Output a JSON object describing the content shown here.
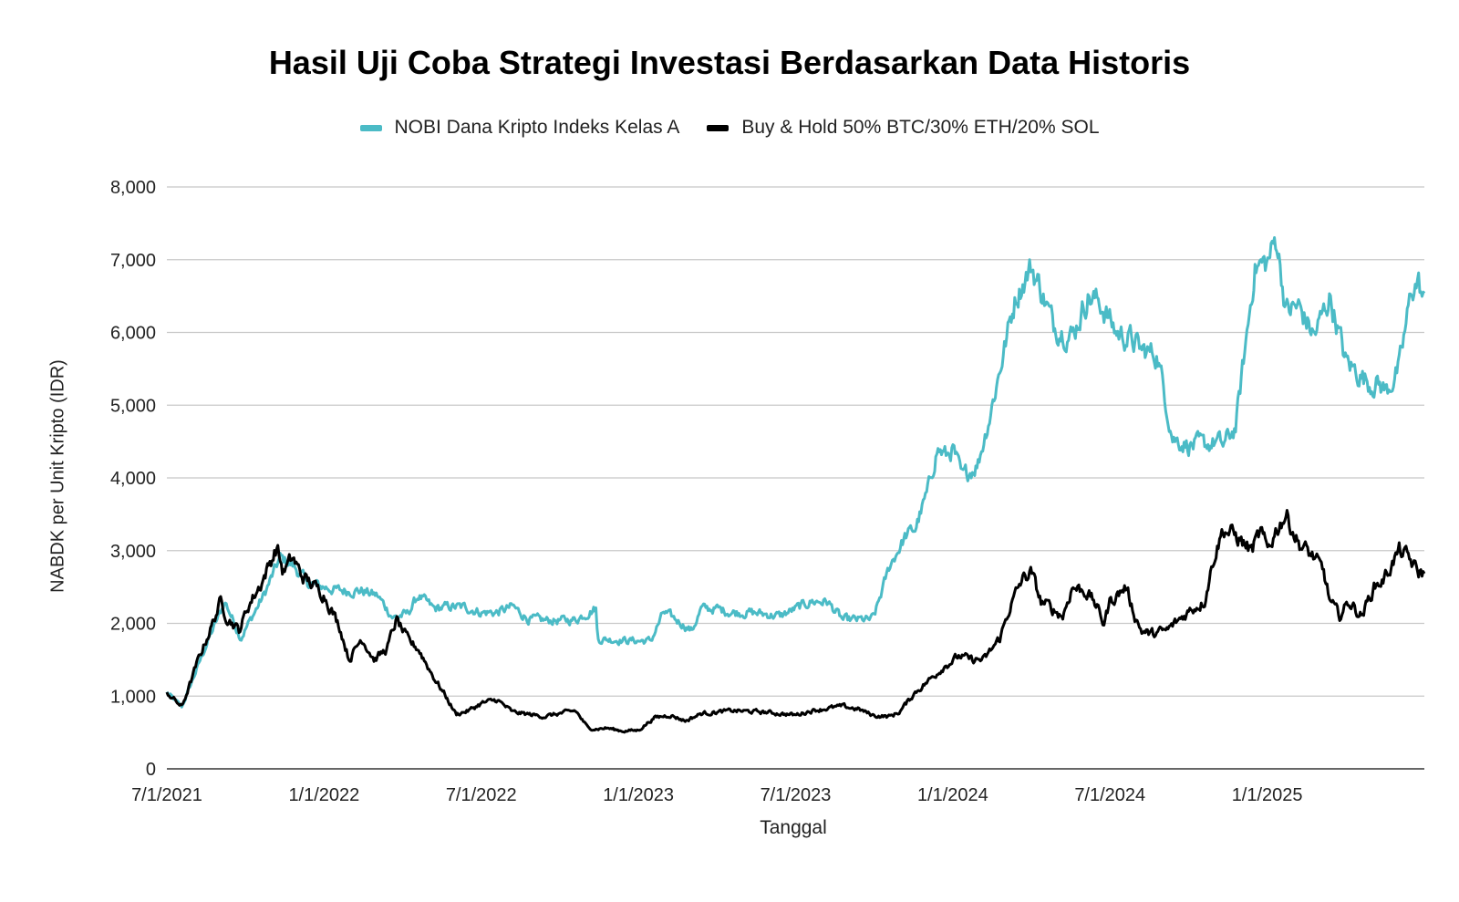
{
  "chart_data": {
    "type": "line",
    "title": "Hasil Uji Coba Strategi Investasi Berdasarkan Data Historis",
    "xlabel": "Tanggal",
    "ylabel": "NABDK per Unit Kripto (IDR)",
    "ylim": [
      0,
      8000
    ],
    "y_ticks": [
      "0",
      "1,000",
      "2,000",
      "3,000",
      "4,000",
      "5,000",
      "6,000",
      "7,000",
      "8,000"
    ],
    "y_tick_values": [
      0,
      1000,
      2000,
      3000,
      4000,
      5000,
      6000,
      7000,
      8000
    ],
    "x_ticks": [
      "7/1/2021",
      "1/1/2022",
      "7/1/2022",
      "1/1/2023",
      "7/1/2023",
      "1/1/2024",
      "7/1/2024",
      "1/1/2025"
    ],
    "x_tick_values": [
      2021.5,
      2022.0,
      2022.5,
      2023.0,
      2023.5,
      2024.0,
      2024.5,
      2025.0
    ],
    "xlim": [
      2021.5,
      2025.5
    ],
    "grid": true,
    "legend_position": "top",
    "series": [
      {
        "name": "NOBI Dana Kripto Indeks Kelas A",
        "color": "#4bbbc6",
        "x": [
          2021.5,
          2021.548,
          2021.625,
          2021.685,
          2021.735,
          2021.81,
          2021.86,
          2021.9,
          2021.95,
          2022.0,
          2022.05,
          2022.12,
          2022.17,
          2022.22,
          2022.265,
          2022.3,
          2022.35,
          2022.4,
          2022.45,
          2022.5,
          2022.55,
          2022.6,
          2022.65,
          2022.7,
          2022.75,
          2022.8,
          2022.865,
          2022.87,
          2022.9,
          2022.95,
          2023.0,
          2023.04,
          2023.08,
          2023.12,
          2023.17,
          2023.2,
          2023.25,
          2023.3,
          2023.35,
          2023.4,
          2023.45,
          2023.5,
          2023.55,
          2023.6,
          2023.65,
          2023.7,
          2023.74,
          2023.75,
          2023.8,
          2023.85,
          2023.88,
          2023.92,
          2023.95,
          2023.98,
          2024.0,
          2024.03,
          2024.08,
          2024.12,
          2024.16,
          2024.2,
          2024.25,
          2024.28,
          2024.32,
          2024.36,
          2024.38,
          2024.43,
          2024.47,
          2024.52,
          2024.57,
          2024.6,
          2024.65,
          2024.7,
          2024.75,
          2024.8,
          2024.84,
          2024.86,
          2024.9,
          2024.95,
          2024.96,
          2025.0,
          2025.03,
          2025.06,
          2025.1,
          2025.15,
          2025.2,
          2025.25,
          2025.3,
          2025.33,
          2025.35,
          2025.38,
          2025.42,
          2025.46,
          2025.48,
          2025.5
        ],
        "values": [
          1050,
          850,
          1700,
          2300,
          1800,
          2400,
          2900,
          2800,
          2550,
          2500,
          2450,
          2450,
          2380,
          2080,
          2130,
          2380,
          2200,
          2230,
          2220,
          2150,
          2150,
          2230,
          2060,
          2040,
          2040,
          2050,
          2210,
          1780,
          1780,
          1770,
          1760,
          1760,
          2150,
          2050,
          1900,
          2200,
          2200,
          2150,
          2150,
          2130,
          2100,
          2200,
          2300,
          2300,
          2050,
          2050,
          2050,
          2100,
          2800,
          3200,
          3300,
          3800,
          4400,
          4300,
          4400,
          4000,
          4200,
          4900,
          5700,
          6500,
          6900,
          6600,
          6100,
          6000,
          5950,
          6500,
          6400,
          6000,
          5900,
          5750,
          5700,
          4550,
          4450,
          4450,
          4500,
          4450,
          4700,
          6500,
          6900,
          6950,
          7300,
          6300,
          6350,
          5950,
          6500,
          5600,
          5400,
          5300,
          5300,
          5200,
          5500,
          6600,
          6700,
          6400
        ]
      },
      {
        "name": "Buy & Hold 50% BTC/30% ETH/20% SOL",
        "color": "#000000",
        "x": [
          2021.5,
          2021.548,
          2021.6,
          2021.65,
          2021.67,
          2021.69,
          2021.73,
          2021.76,
          2021.8,
          2021.85,
          2021.87,
          2021.9,
          2021.93,
          2022.0,
          2022.05,
          2022.08,
          2022.12,
          2022.16,
          2022.2,
          2022.23,
          2022.27,
          2022.3,
          2022.35,
          2022.38,
          2022.42,
          2022.46,
          2022.5,
          2022.55,
          2022.6,
          2022.65,
          2022.7,
          2022.8,
          2022.84,
          2022.865,
          2022.9,
          2022.95,
          2023.0,
          2023.05,
          2023.1,
          2023.15,
          2023.2,
          2023.3,
          2023.4,
          2023.5,
          2023.55,
          2023.6,
          2023.65,
          2023.7,
          2023.75,
          2023.8,
          2023.83,
          2023.88,
          2023.92,
          2023.97,
          2024.02,
          2024.06,
          2024.1,
          2024.15,
          2024.18,
          2024.22,
          2024.25,
          2024.28,
          2024.3,
          2024.35,
          2024.38,
          2024.42,
          2024.45,
          2024.48,
          2024.5,
          2024.55,
          2024.58,
          2024.6,
          2024.63,
          2024.68,
          2024.72,
          2024.76,
          2024.8,
          2024.83,
          2024.86,
          2024.88,
          2024.9,
          2024.95,
          2024.98,
          2025.0,
          2025.03,
          2025.06,
          2025.1,
          2025.15,
          2025.18,
          2025.2,
          2025.23,
          2025.26,
          2025.3,
          2025.34,
          2025.37,
          2025.42,
          2025.45,
          2025.48,
          2025.5
        ],
        "values": [
          1050,
          850,
          1500,
          2050,
          2300,
          2100,
          1900,
          2250,
          2550,
          3050,
          2700,
          2900,
          2650,
          2400,
          1950,
          1500,
          1800,
          1500,
          1650,
          2050,
          1750,
          1650,
          1250,
          1050,
          750,
          800,
          900,
          950,
          780,
          750,
          720,
          800,
          560,
          550,
          560,
          520,
          530,
          700,
          740,
          660,
          760,
          800,
          780,
          740,
          800,
          830,
          860,
          820,
          730,
          720,
          780,
          1050,
          1200,
          1400,
          1550,
          1500,
          1500,
          1800,
          2200,
          2600,
          2700,
          2300,
          2250,
          2100,
          2500,
          2450,
          2300,
          2000,
          2300,
          2500,
          2100,
          1900,
          1850,
          1900,
          2050,
          2200,
          2300,
          2900,
          3300,
          3250,
          3200,
          3000,
          3250,
          3000,
          3300,
          3500,
          3100,
          2900,
          2700,
          2300,
          2100,
          2300,
          2100,
          2500,
          2600,
          3000,
          2900,
          2700,
          2700
        ]
      }
    ]
  }
}
